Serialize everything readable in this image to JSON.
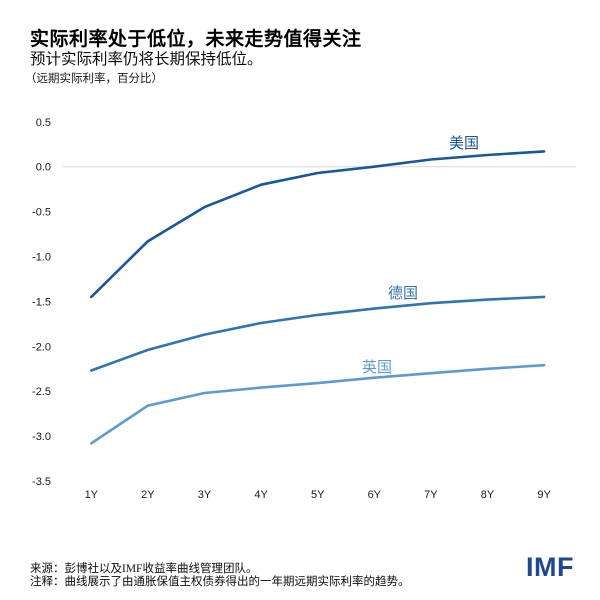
{
  "header": {
    "title": "实际利率处于低位，未来走势值得关注",
    "subtitle": "预计实际利率仍将长期保持低位。",
    "unit_note": "（远期实际利率，百分比）"
  },
  "chart_data": {
    "type": "line",
    "categories": [
      "1Y",
      "2Y",
      "3Y",
      "4Y",
      "5Y",
      "6Y",
      "7Y",
      "8Y",
      "9Y"
    ],
    "series": [
      {
        "id": "us",
        "name": "美国",
        "color": "#1657a0",
        "values": [
          -1.45,
          -0.83,
          -0.45,
          -0.2,
          -0.07,
          0.0,
          0.08,
          0.13,
          0.17
        ]
      },
      {
        "id": "germany",
        "name": "德国",
        "color": "#2e75b6",
        "values": [
          -2.27,
          -2.04,
          -1.87,
          -1.74,
          -1.65,
          -1.58,
          -1.52,
          -1.48,
          -1.45
        ]
      },
      {
        "id": "uk",
        "name": "英国",
        "color": "#5b9bd5",
        "values": [
          -3.08,
          -2.66,
          -2.52,
          -2.46,
          -2.41,
          -2.35,
          -2.3,
          -2.25,
          -2.21
        ]
      }
    ],
    "y_tick_labels": [
      "0.5",
      "0.0",
      "-0.5",
      "-1.0",
      "-1.5",
      "-2.0",
      "-2.5",
      "-3.0",
      "-3.5"
    ],
    "ylim": [
      -3.5,
      0.5
    ],
    "xlabel": "",
    "ylabel": "（远期实际利率，百分比）",
    "title": "实际利率处于低位，未来走势值得关注",
    "grid": "zero-line-only",
    "gridline_color": "#d9d9d9",
    "tick_color": "#1a1a1a",
    "legend_position": "inline-labels"
  },
  "footer": {
    "source": "来源：彭博社以及IMF收益率曲线管理团队。",
    "note": "注释：曲线展示了由通胀保值主权债券得出的一年期远期实际利率的趋势。",
    "logo": "IMF",
    "logo_color": "#1e4796"
  }
}
